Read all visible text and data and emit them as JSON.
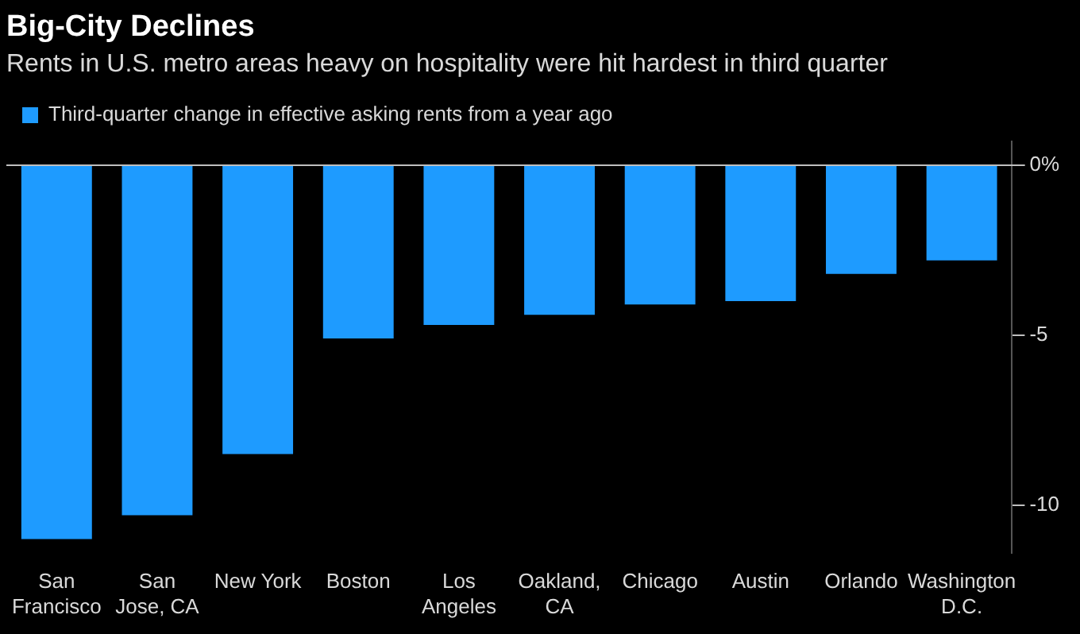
{
  "chart_data": {
    "type": "bar",
    "title": "Big-City Declines",
    "subtitle": "Rents in U.S. metro areas heavy on hospitality were hit hardest in third quarter",
    "categories": [
      "San Francisco",
      "San Jose, CA",
      "New York",
      "Boston",
      "Los Angeles",
      "Oakland, CA",
      "Chicago",
      "Austin",
      "Orlando",
      "Washington D.C."
    ],
    "series": [
      {
        "name": "Third-quarter change in effective asking rents from a year ago",
        "color": "#1e9bff",
        "values": [
          -11.0,
          -10.3,
          -8.5,
          -5.1,
          -4.7,
          -4.4,
          -4.1,
          -4.0,
          -3.2,
          -2.8
        ]
      }
    ],
    "ylim": [
      -11.4,
      0.7
    ],
    "yticks": [
      {
        "value": 0,
        "label": "0%"
      },
      -5,
      -10
    ],
    "ref_lines": [
      {
        "axis": "y",
        "value": 0,
        "color": "#bfbfbf"
      }
    ],
    "legend": "top left",
    "grid": false
  }
}
